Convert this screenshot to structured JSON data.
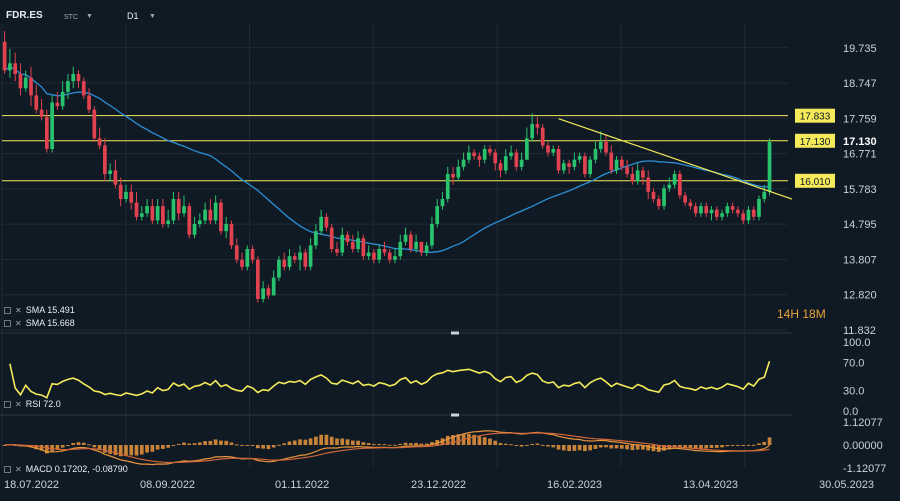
{
  "header": {
    "symbol": "FDR.ES",
    "exchange": "STC",
    "timeframe": "D1",
    "dropdown_icon": "caret-down-icon"
  },
  "chart_data": {
    "type": "line",
    "title": "FDR.ES",
    "x_tick_labels": [
      "18.07.2022",
      "08.09.2022",
      "01.11.2022",
      "23.12.2022",
      "16.02.2023",
      "13.04.2023",
      "30.05.2023"
    ],
    "price_axis_ticks": [
      "19.735",
      "18.747",
      "17.759",
      "16.771",
      "15.783",
      "14.795",
      "13.807",
      "12.820",
      "11.832"
    ],
    "price_ylim": [
      11.832,
      20.4
    ],
    "current_price": 17.13,
    "horizontal_levels": [
      {
        "value": 17.833,
        "label": "17.833"
      },
      {
        "value": 17.13,
        "label": "17.130"
      },
      {
        "value": 16.01,
        "label": "16.010"
      }
    ],
    "candles": {
      "open": [
        19.9,
        19.1,
        19.3,
        19.0,
        18.6,
        18.9,
        18.4,
        18.0,
        17.8,
        16.9,
        18.2,
        18.1,
        18.5,
        18.8,
        19.0,
        18.8,
        18.4,
        18.0,
        17.2,
        17.0,
        16.2,
        16.3,
        15.9,
        15.5,
        15.7,
        15.4,
        15.0,
        15.1,
        15.3,
        14.9,
        15.3,
        14.8,
        14.9,
        15.5,
        15.1,
        15.3,
        14.5,
        14.8,
        14.9,
        15.2,
        14.9,
        15.4,
        14.6,
        14.8,
        14.2,
        13.8,
        13.6,
        14.1,
        13.8,
        12.7,
        13.0,
        12.8,
        13.3,
        13.8,
        13.6,
        13.9,
        13.8,
        14.0,
        13.6,
        14.2,
        14.6,
        15.0,
        14.7,
        14.1,
        14.0,
        14.5,
        14.3,
        14.1,
        14.4,
        13.9,
        14.0,
        13.8,
        14.1,
        14.0,
        13.8,
        13.9,
        14.3,
        14.5,
        14.1,
        14.3,
        14.0,
        14.2,
        14.8,
        15.3,
        15.5,
        16.2,
        16.1,
        16.4,
        16.6,
        16.8,
        16.7,
        16.6,
        16.9,
        16.8,
        16.5,
        16.3,
        16.7,
        16.8,
        16.4,
        16.6,
        17.2,
        17.6,
        17.5,
        17.0,
        16.8,
        16.9,
        16.3,
        16.5,
        16.4,
        16.6,
        16.7,
        16.2,
        16.6,
        16.9,
        17.1,
        16.8,
        16.3,
        16.6,
        16.4,
        16.2,
        16.0,
        16.3,
        16.1,
        15.7,
        15.5,
        15.3,
        15.8,
        15.9,
        16.2,
        15.6,
        15.4,
        15.3,
        15.1,
        15.3,
        15.1,
        15.2,
        15.0,
        15.1,
        15.3,
        15.2,
        15.1,
        14.9,
        15.2,
        15.0,
        15.5,
        15.7
      ],
      "high": [
        20.2,
        19.7,
        19.6,
        19.3,
        19.1,
        19.2,
        18.7,
        18.3,
        18.0,
        18.4,
        18.5,
        18.8,
        19.0,
        19.2,
        19.1,
        18.9,
        18.6,
        18.1,
        17.5,
        17.2,
        16.5,
        16.6,
        16.1,
        15.9,
        15.9,
        15.7,
        15.3,
        15.5,
        15.5,
        15.5,
        15.5,
        15.2,
        15.7,
        15.7,
        15.6,
        15.4,
        15.0,
        15.1,
        15.4,
        15.5,
        15.6,
        15.5,
        15.0,
        14.9,
        14.4,
        14.0,
        14.2,
        14.2,
        13.9,
        13.2,
        13.1,
        13.5,
        13.9,
        14.0,
        14.1,
        14.0,
        14.2,
        14.1,
        14.4,
        14.8,
        15.2,
        15.1,
        14.8,
        14.3,
        14.7,
        14.6,
        14.5,
        14.6,
        14.5,
        14.2,
        14.1,
        14.2,
        14.3,
        14.1,
        14.1,
        14.5,
        14.7,
        14.6,
        14.5,
        14.3,
        14.3,
        15.0,
        15.5,
        15.7,
        16.4,
        16.4,
        16.6,
        16.8,
        17.0,
        16.9,
        16.8,
        17.0,
        17.0,
        16.9,
        16.6,
        16.9,
        17.0,
        16.9,
        16.8,
        17.5,
        17.9,
        17.8,
        17.6,
        17.1,
        17.0,
        17.0,
        16.6,
        16.6,
        16.8,
        16.8,
        16.8,
        16.7,
        17.1,
        17.4,
        17.3,
        17.0,
        16.7,
        16.7,
        16.6,
        16.4,
        16.5,
        16.4,
        16.3,
        15.8,
        15.6,
        15.9,
        16.1,
        16.3,
        16.3,
        15.7,
        15.5,
        15.4,
        15.4,
        15.4,
        15.3,
        15.3,
        15.2,
        15.4,
        15.4,
        15.3,
        15.2,
        15.3,
        15.3,
        15.6,
        15.9,
        17.2
      ],
      "low": [
        19.0,
        18.9,
        18.8,
        18.4,
        18.5,
        18.1,
        17.9,
        17.7,
        16.8,
        16.8,
        18.0,
        18.0,
        18.3,
        18.6,
        18.6,
        18.3,
        17.9,
        17.1,
        16.9,
        16.0,
        16.0,
        15.8,
        15.3,
        15.4,
        15.2,
        14.9,
        14.9,
        15.0,
        14.8,
        14.8,
        14.7,
        14.7,
        14.8,
        14.9,
        15.0,
        14.4,
        14.4,
        14.7,
        14.8,
        14.8,
        14.8,
        14.5,
        14.4,
        14.1,
        13.7,
        13.5,
        13.5,
        13.7,
        12.6,
        12.6,
        12.7,
        12.8,
        13.2,
        13.5,
        13.5,
        13.7,
        13.5,
        13.5,
        13.5,
        14.1,
        14.5,
        14.6,
        14.0,
        13.9,
        13.9,
        14.2,
        14.0,
        14.0,
        13.8,
        13.8,
        13.7,
        13.7,
        13.9,
        13.7,
        13.7,
        13.8,
        14.2,
        14.0,
        14.0,
        13.9,
        13.9,
        14.1,
        14.7,
        15.2,
        15.4,
        15.9,
        16.0,
        16.3,
        16.5,
        16.6,
        16.4,
        16.5,
        16.7,
        16.3,
        16.1,
        16.2,
        16.6,
        16.3,
        16.3,
        16.6,
        17.1,
        17.3,
        16.9,
        16.7,
        16.7,
        16.2,
        16.2,
        16.2,
        16.3,
        16.5,
        16.1,
        16.1,
        16.5,
        16.8,
        16.7,
        16.2,
        16.2,
        16.3,
        16.1,
        15.9,
        15.9,
        15.9,
        15.5,
        15.4,
        15.2,
        15.2,
        15.7,
        15.8,
        15.5,
        15.3,
        15.2,
        15.0,
        15.0,
        15.0,
        14.9,
        14.9,
        14.9,
        15.0,
        15.1,
        15.0,
        14.8,
        14.8,
        14.9,
        14.9,
        15.4,
        15.6
      ],
      "close": [
        19.1,
        19.3,
        19.0,
        18.6,
        18.9,
        18.4,
        18.0,
        17.8,
        16.9,
        18.2,
        18.1,
        18.5,
        18.8,
        19.0,
        18.8,
        18.4,
        18.0,
        17.2,
        17.0,
        16.2,
        16.3,
        15.9,
        15.5,
        15.7,
        15.4,
        15.0,
        15.1,
        15.3,
        14.9,
        15.3,
        14.8,
        14.9,
        15.5,
        15.1,
        15.3,
        14.5,
        14.8,
        14.9,
        15.2,
        14.9,
        15.4,
        14.6,
        14.8,
        14.2,
        13.8,
        13.6,
        14.1,
        13.8,
        12.7,
        13.0,
        12.8,
        13.3,
        13.8,
        13.6,
        13.9,
        13.8,
        14.0,
        13.6,
        14.2,
        14.6,
        15.0,
        14.7,
        14.1,
        14.0,
        14.5,
        14.3,
        14.1,
        14.4,
        13.9,
        14.0,
        13.8,
        14.1,
        14.0,
        13.8,
        13.9,
        14.3,
        14.5,
        14.1,
        14.3,
        14.0,
        14.2,
        14.8,
        15.3,
        15.5,
        16.2,
        16.1,
        16.4,
        16.6,
        16.8,
        16.7,
        16.6,
        16.9,
        16.8,
        16.5,
        16.3,
        16.7,
        16.8,
        16.4,
        16.6,
        17.2,
        17.6,
        17.5,
        17.0,
        16.8,
        16.9,
        16.3,
        16.5,
        16.4,
        16.6,
        16.7,
        16.2,
        16.6,
        16.9,
        17.1,
        16.8,
        16.3,
        16.6,
        16.4,
        16.2,
        16.0,
        16.3,
        16.1,
        15.7,
        15.5,
        15.3,
        15.8,
        15.9,
        16.2,
        15.6,
        15.4,
        15.3,
        15.1,
        15.3,
        15.1,
        15.2,
        15.0,
        15.1,
        15.3,
        15.2,
        15.1,
        14.9,
        15.2,
        15.0,
        15.5,
        15.7,
        17.1
      ]
    },
    "sma": [
      {
        "name": "SMA 15.491",
        "value": 15.491,
        "color": "#2b8fd6"
      },
      {
        "name": "SMA 15.668",
        "value": 15.668,
        "color": "#2b8fd6"
      }
    ],
    "trendline": {
      "from_index": 105,
      "from_value": 17.75,
      "to_index": 149,
      "to_value": 15.55,
      "color": "#f4ea5a"
    },
    "rsi": {
      "label": "RSI 72.0",
      "value": 72.0,
      "ticks": [
        "100.0",
        "70.0",
        "30.0",
        "0.0"
      ],
      "ylim": [
        0,
        100
      ],
      "color": "#f4ea5a"
    },
    "macd": {
      "label": "MACD 0.17202, -0.08790",
      "value": 0.17202,
      "signal": -0.0879,
      "ticks": [
        "1.12077",
        "0.00000",
        "-1.12077"
      ],
      "ylim": [
        -1.12077,
        1.12077
      ],
      "color": "#e9963c"
    },
    "colors": {
      "background": "#101a24",
      "up": "#29c26d",
      "down": "#e0424f",
      "levels": "#f4ea5a",
      "sma": "#2b8fd6",
      "grid": "#1f2a36"
    }
  },
  "timer": {
    "hours": "14",
    "h_unit": "H",
    "minutes": "18",
    "m_unit": "M"
  }
}
